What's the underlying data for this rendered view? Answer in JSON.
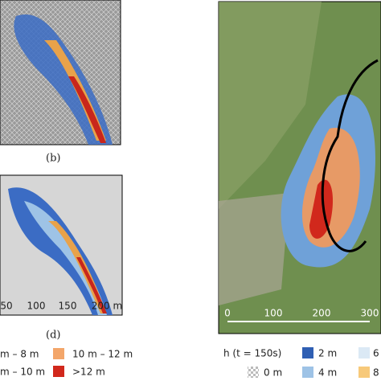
{
  "panel_b": {
    "caption": "(b)"
  },
  "panel_d": {
    "caption": "(d)",
    "scale_labels": [
      "50",
      "100",
      "150",
      "200 m"
    ]
  },
  "legend_left": {
    "items": [
      "m – 8 m",
      "m – 10 m",
      "10 m – 12 m",
      ">12 m"
    ]
  },
  "panel_right": {
    "scale_labels": [
      "0",
      "100",
      "200",
      "300"
    ]
  },
  "legend_right": {
    "title": "h (t = 150s)",
    "items": [
      "0 m",
      "2 m",
      "4 m",
      "6",
      "8"
    ]
  }
}
